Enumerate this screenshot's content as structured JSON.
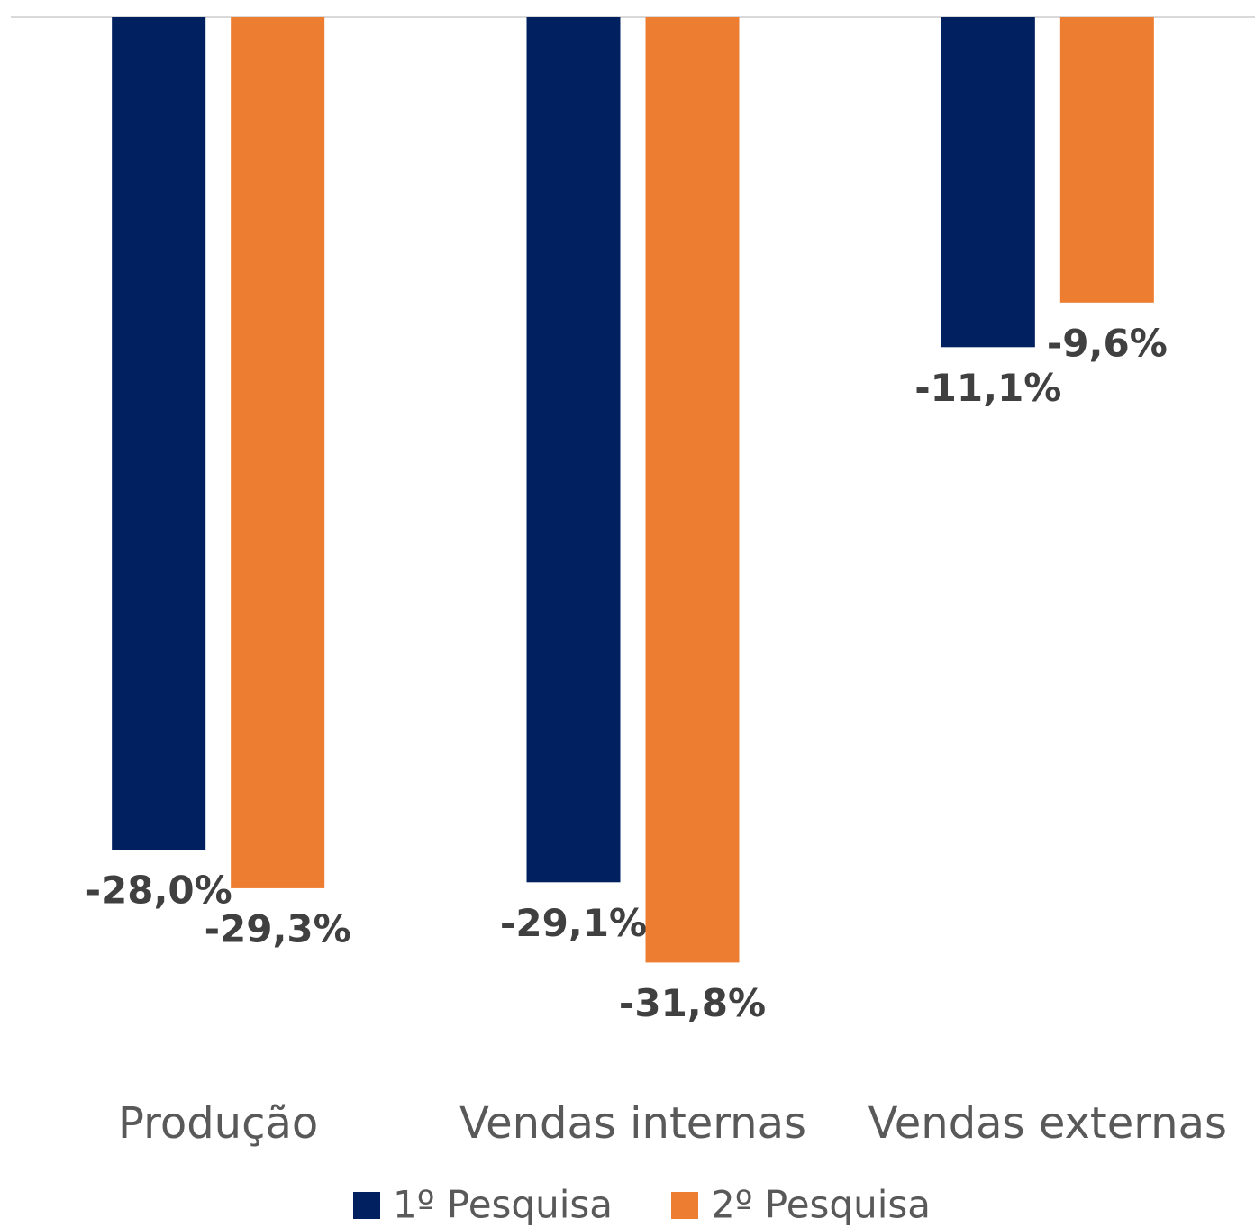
{
  "chart_data": {
    "type": "bar",
    "categories": [
      "Produção",
      "Vendas internas",
      "Vendas externas"
    ],
    "series": [
      {
        "name": "1º Pesquisa",
        "color": "#002060",
        "values": [
          -28.0,
          -29.1,
          -11.1
        ],
        "value_labels": [
          "-28,0%",
          "-29,1%",
          "-11,1%"
        ]
      },
      {
        "name": "2º Pesquisa",
        "color": "#ED7D31",
        "values": [
          -29.3,
          -31.8,
          -9.6
        ],
        "value_labels": [
          "-29,3%",
          "-31,8%",
          "-9,6%"
        ]
      }
    ],
    "ylim": [
      -35,
      0
    ]
  }
}
